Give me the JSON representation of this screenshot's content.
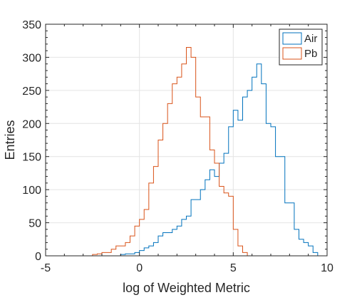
{
  "chart_data": {
    "type": "histogram",
    "xlabel": "log of Weighted Metric",
    "ylabel": "Entries",
    "xlim": [
      -5,
      10
    ],
    "ylim": [
      0,
      350
    ],
    "xticks": [
      -5,
      0,
      5,
      10
    ],
    "yticks": [
      0,
      50,
      100,
      150,
      200,
      250,
      300,
      350
    ],
    "grid": true,
    "box": true,
    "minor_ticks": true,
    "legend_position": "top-right",
    "bin_edges": [
      -2.5,
      -2.25,
      -2.0,
      -1.75,
      -1.5,
      -1.25,
      -1.0,
      -0.75,
      -0.5,
      -0.25,
      0.0,
      0.25,
      0.5,
      0.75,
      1.0,
      1.25,
      1.5,
      1.75,
      2.0,
      2.25,
      2.5,
      2.75,
      3.0,
      3.25,
      3.5,
      3.75,
      4.0,
      4.25,
      4.5,
      4.75,
      5.0,
      5.25,
      5.5,
      5.75,
      6.0,
      6.25,
      6.5,
      6.75,
      7.0,
      7.25,
      7.5,
      7.75,
      8.0,
      8.25,
      8.5,
      8.75,
      9.0,
      9.25,
      9.5,
      9.75
    ],
    "series": [
      {
        "name": "Air",
        "color": "#0072bd",
        "values": [
          0,
          0,
          0,
          0,
          0,
          0,
          2,
          3,
          3,
          5,
          8,
          12,
          15,
          20,
          30,
          35,
          35,
          40,
          45,
          55,
          60,
          85,
          85,
          100,
          115,
          130,
          120,
          140,
          155,
          195,
          220,
          205,
          240,
          250,
          270,
          290,
          260,
          200,
          195,
          150,
          150,
          80,
          80,
          40,
          25,
          20,
          15,
          5,
          0
        ]
      },
      {
        "name": "Pb",
        "color": "#d95319",
        "values": [
          2,
          3,
          5,
          5,
          10,
          15,
          15,
          20,
          30,
          45,
          55,
          70,
          110,
          135,
          175,
          200,
          230,
          260,
          270,
          290,
          315,
          300,
          240,
          210,
          210,
          160,
          140,
          105,
          95,
          90,
          40,
          15,
          5,
          0,
          0,
          0,
          0,
          0,
          0,
          0,
          0,
          0,
          0,
          0,
          0,
          0,
          0,
          0,
          0
        ]
      }
    ]
  }
}
